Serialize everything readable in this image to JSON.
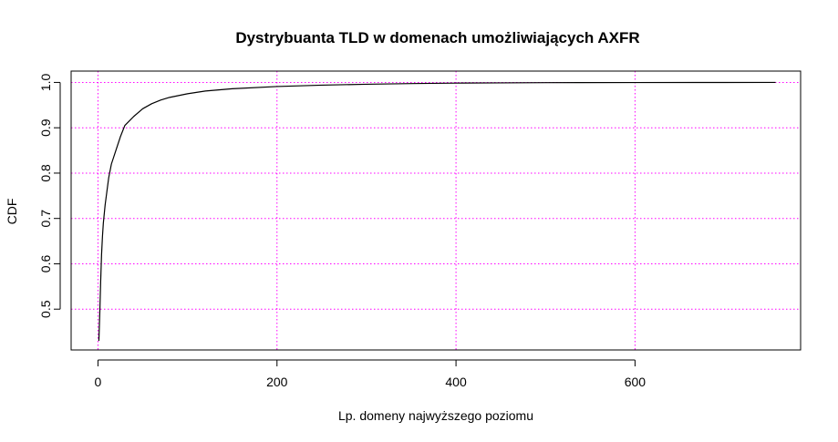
{
  "chart_data": {
    "type": "line",
    "title": "Dystrybuanta TLD w domenach umożliwiających AXFR",
    "xlabel": "Lp. domeny najwyższego poziomu",
    "ylabel": "CDF",
    "xlim": [
      -30,
      785
    ],
    "ylim": [
      0.41,
      1.025
    ],
    "x_ticks": [
      0,
      200,
      400,
      600
    ],
    "y_ticks": [
      0.5,
      0.6,
      0.7,
      0.8,
      0.9,
      1.0
    ],
    "x_tick_labels": [
      "0",
      "200",
      "400",
      "600"
    ],
    "y_tick_labels": [
      "0.5",
      "0.6",
      "0.7",
      "0.8",
      "0.9",
      "1.0"
    ],
    "grid": true,
    "grid_color": "#ff00ff",
    "line_color": "#000000",
    "series": [
      {
        "x": [
          1,
          2,
          3,
          4,
          5,
          6,
          8,
          10,
          12,
          15,
          20,
          25,
          30,
          40,
          50,
          60,
          70,
          80,
          100,
          120,
          150,
          200,
          250,
          300,
          350,
          400,
          450,
          500,
          600,
          700,
          757
        ],
        "values": [
          0.43,
          0.49,
          0.56,
          0.62,
          0.66,
          0.69,
          0.73,
          0.76,
          0.79,
          0.82,
          0.85,
          0.88,
          0.905,
          0.925,
          0.942,
          0.953,
          0.961,
          0.967,
          0.975,
          0.981,
          0.986,
          0.991,
          0.994,
          0.996,
          0.9975,
          0.9985,
          0.999,
          0.9995,
          0.9998,
          0.9999,
          1.0
        ]
      }
    ]
  }
}
